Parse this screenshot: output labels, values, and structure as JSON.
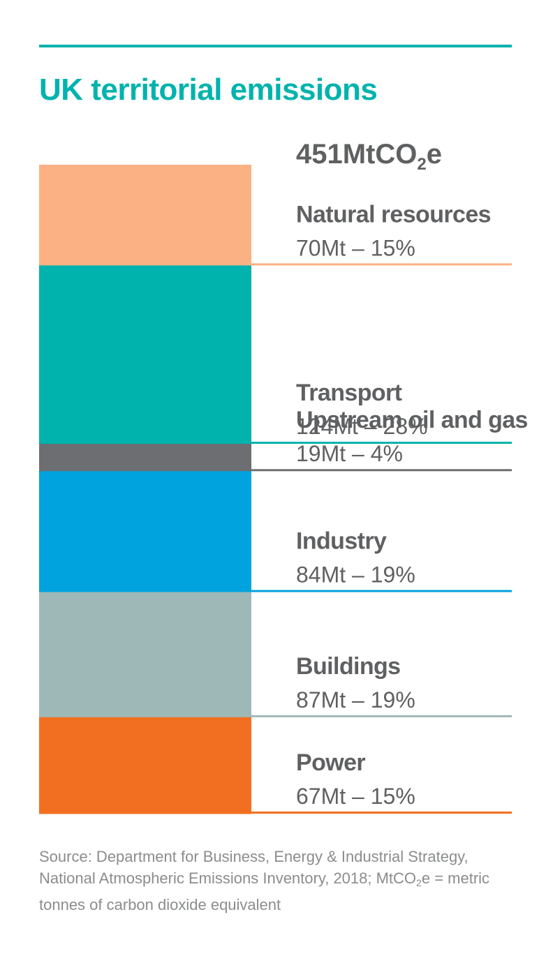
{
  "title": "UK territorial emissions",
  "chart_data": {
    "type": "bar",
    "orientation": "stacked-column",
    "total": {
      "value": 451,
      "label_main": "451MtCO",
      "label_sub": "2",
      "label_suffix": "e"
    },
    "segments": [
      {
        "name": "Natural resources",
        "value": 70,
        "label": "70Mt – 15%",
        "color": "#fbb183"
      },
      {
        "name": "Transport",
        "value": 124,
        "label": "124Mt – 28%",
        "color": "#00b3ad"
      },
      {
        "name": "Upstream oil and gas",
        "value": 19,
        "label": "19Mt – 4%",
        "color": "#6d6e71"
      },
      {
        "name": "Industry",
        "value": 84,
        "label": "84Mt – 19%",
        "color": "#00a3de"
      },
      {
        "name": "Buildings",
        "value": 87,
        "label": "87Mt – 19%",
        "color": "#9eb8b7"
      },
      {
        "name": "Power",
        "value": 67,
        "label": "67Mt – 15%",
        "color": "#f26f21"
      }
    ]
  },
  "source": {
    "text_before": "Source: Department for Business, Energy & Industrial Strategy, National Atmospheric Emissions Inventory, 2018; MtCO",
    "sub": "2",
    "text_after": "e = metric tonnes of carbon dioxide equivalent"
  },
  "colors": {
    "accent": "#00b3ad",
    "text": "#5f6062",
    "source_text": "#8a8c8e"
  }
}
